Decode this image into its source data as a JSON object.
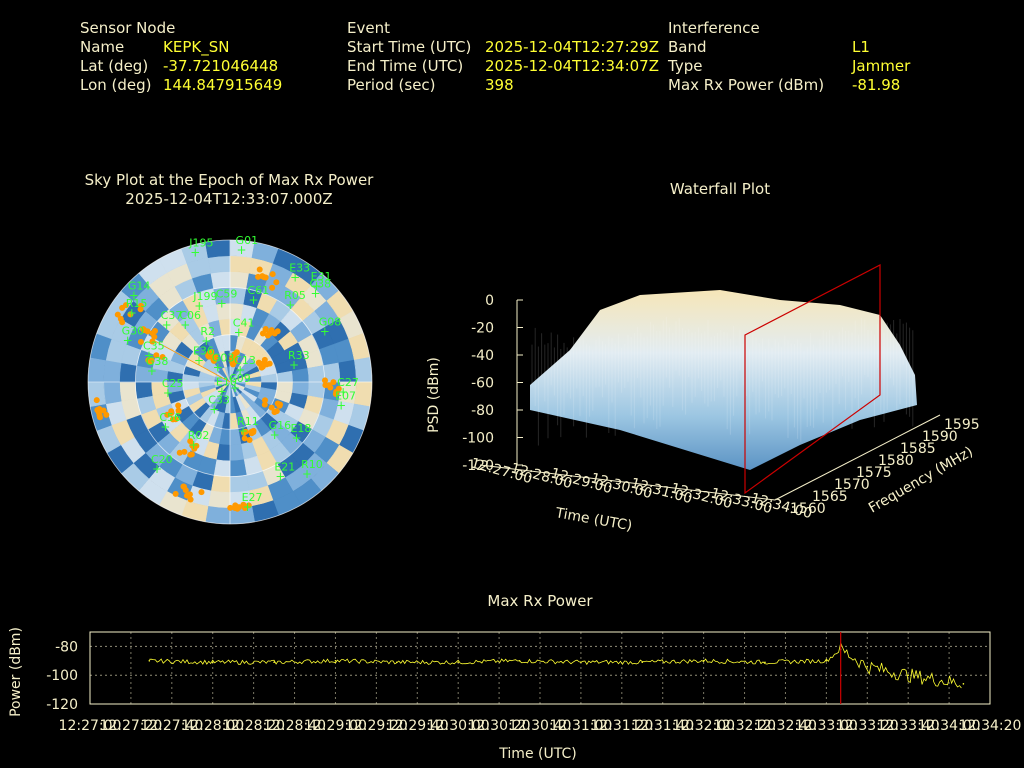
{
  "header": {
    "sensor": {
      "heading": "Sensor Node",
      "name_label": "Name",
      "name_value": "KEPK_SN",
      "lat_label": "Lat (deg)",
      "lat_value": "-37.721046448",
      "lon_label": "Lon (deg)",
      "lon_value": "144.847915649"
    },
    "event": {
      "heading": "Event",
      "start_label": "Start Time (UTC)",
      "start_value": "2025-12-04T12:27:29Z",
      "end_label": "End Time (UTC)",
      "end_value": "2025-12-04T12:34:07Z",
      "period_label": "Period (sec)",
      "period_value": "398"
    },
    "interference": {
      "heading": "Interference",
      "band_label": "Band",
      "band_value": "L1",
      "type_label": "Type",
      "type_value": "Jammer",
      "power_label": "Max Rx Power (dBm)",
      "power_value": "-81.98"
    }
  },
  "skyplot": {
    "title_line1": "Sky Plot at the Epoch of Max Rx Power",
    "title_line2": "2025-12-04T12:33:07.000Z",
    "satellites": [
      {
        "id": "G14",
        "az": -48,
        "el": 8
      },
      {
        "id": "J195",
        "az": -15,
        "el": 5
      },
      {
        "id": "G01",
        "az": 5,
        "el": 6
      },
      {
        "id": "E31",
        "az": 42,
        "el": 8
      },
      {
        "id": "E33",
        "az": 32,
        "el": 12
      },
      {
        "id": "C38",
        "az": 44,
        "el": 12
      },
      {
        "id": "R15",
        "az": -55,
        "el": 14
      },
      {
        "id": "C37",
        "az": -48,
        "el": 36
      },
      {
        "id": "C06",
        "az": -38,
        "el": 44
      },
      {
        "id": "J199",
        "az": -22,
        "el": 38
      },
      {
        "id": "C59",
        "az": -6,
        "el": 40
      },
      {
        "id": "C61",
        "az": 16,
        "el": 36
      },
      {
        "id": "R05",
        "az": 38,
        "el": 28
      },
      {
        "id": "G08",
        "az": 62,
        "el": 22
      },
      {
        "id": "C41",
        "az": 10,
        "el": 58
      },
      {
        "id": "R2",
        "az": -30,
        "el": 60
      },
      {
        "id": "G30",
        "az": -68,
        "el": 20
      },
      {
        "id": "C35",
        "az": -72,
        "el": 36
      },
      {
        "id": "G38",
        "az": -82,
        "el": 40
      },
      {
        "id": "E36",
        "az": -55,
        "el": 66
      },
      {
        "id": "G03",
        "az": -40,
        "el": 78
      },
      {
        "id": "C13",
        "az": 40,
        "el": 80
      },
      {
        "id": "R33",
        "az": 75,
        "el": 48
      },
      {
        "id": "C27",
        "az": 95,
        "el": 18
      },
      {
        "id": "E07",
        "az": 102,
        "el": 18
      },
      {
        "id": "C25",
        "az": -100,
        "el": 50
      },
      {
        "id": "E10",
        "az": -140,
        "el": 82
      },
      {
        "id": "C09",
        "az": 140,
        "el": 85
      },
      {
        "id": "R11",
        "az": 165,
        "el": 58
      },
      {
        "id": "G16",
        "az": 140,
        "el": 46
      },
      {
        "id": "C56",
        "az": -125,
        "el": 40
      },
      {
        "id": "E18",
        "az": 130,
        "el": 35
      },
      {
        "id": "R02",
        "az": -150,
        "el": 44
      },
      {
        "id": "E21",
        "az": 152,
        "el": 22
      },
      {
        "id": "R10",
        "az": 140,
        "el": 14
      },
      {
        "id": "E27",
        "az": 172,
        "el": 10
      },
      {
        "id": "C20",
        "az": -140,
        "el": 18
      },
      {
        "id": "C33",
        "az": -150,
        "el": 70
      }
    ]
  },
  "waterfall": {
    "title": "Waterfall Plot",
    "zlabel": "PSD (dBm)",
    "xlabel": "Time (UTC)",
    "ylabel": "Frequency (MHz)",
    "zticks": [
      "0",
      "-20",
      "-40",
      "-60",
      "-80",
      "-100",
      "-120"
    ],
    "yticks": [
      "1560",
      "1565",
      "1570",
      "1575",
      "1580",
      "1585",
      "1590",
      "1595"
    ]
  },
  "power_plot": {
    "title": "Max Rx Power",
    "ylabel": "Power (dBm)",
    "xlabel": "Time (UTC)",
    "yticks": [
      "-80",
      "-100",
      "-120"
    ],
    "xticks": [
      "12:27:00",
      "12:27:20",
      "12:27:40",
      "12:28:00",
      "12:28:20",
      "12:28:40",
      "12:29:00",
      "12:29:20",
      "12:29:40",
      "12:30:00",
      "12:30:20",
      "12:30:40",
      "12:31:00",
      "12:31:20",
      "12:31:40",
      "12:32:00",
      "12:32:20",
      "12:32:40",
      "12:33:00",
      "12:33:20",
      "12:33:40",
      "12:34:00",
      "12:34:20"
    ]
  },
  "colors": {
    "label": "#f5efc9",
    "value": "#ffff33",
    "satellite": "#33ff33",
    "marker": "#ff9900",
    "trace": "#ffff33",
    "cursor": "#cc0000"
  },
  "chart_data": [
    {
      "type": "line",
      "title": "Max Rx Power",
      "xlabel": "Time (UTC)",
      "ylabel": "Power (dBm)",
      "ylim": [
        -120,
        -70
      ],
      "x": [
        "12:27:29",
        "12:28:00",
        "12:28:30",
        "12:29:00",
        "12:29:30",
        "12:30:00",
        "12:30:30",
        "12:31:00",
        "12:31:30",
        "12:32:00",
        "12:32:30",
        "12:33:00",
        "12:33:07",
        "12:33:20",
        "12:33:40",
        "12:34:07"
      ],
      "series": [
        {
          "values": [
            -90,
            -91,
            -91,
            -90,
            -91,
            -91,
            -90,
            -91,
            -91,
            -90,
            -91,
            -90,
            -82,
            -94,
            -100,
            -106
          ]
        }
      ],
      "marker_time": "12:33:07"
    }
  ]
}
